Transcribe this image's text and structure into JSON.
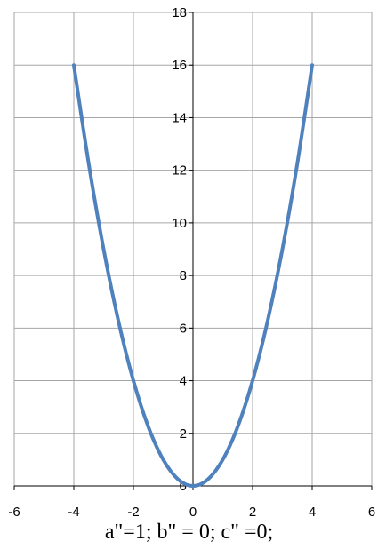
{
  "chart_data": {
    "type": "line",
    "title": "",
    "xlabel": "",
    "ylabel": "",
    "xlim": [
      -6,
      6
    ],
    "ylim": [
      0,
      18
    ],
    "x_ticks": [
      "-6",
      "-4",
      "-2",
      "0",
      "2",
      "4",
      "6"
    ],
    "y_ticks": [
      "0",
      "2",
      "4",
      "6",
      "8",
      "10",
      "12",
      "14",
      "16",
      "18"
    ],
    "grid": true,
    "legend": "none",
    "series": [
      {
        "color": "#4f81bd",
        "x": [
          -4,
          -3.5,
          -3,
          -2.5,
          -2,
          -1.5,
          -1,
          -0.5,
          0,
          0.5,
          1,
          1.5,
          2,
          2.5,
          3,
          3.5,
          4
        ],
        "y": [
          16,
          12.25,
          9,
          6.25,
          4,
          2.25,
          1,
          0.25,
          0,
          0.25,
          1,
          2.25,
          4,
          6.25,
          9,
          12.25,
          16
        ]
      }
    ]
  },
  "caption": "a\"=1; b\" = 0;  c\" =0;"
}
